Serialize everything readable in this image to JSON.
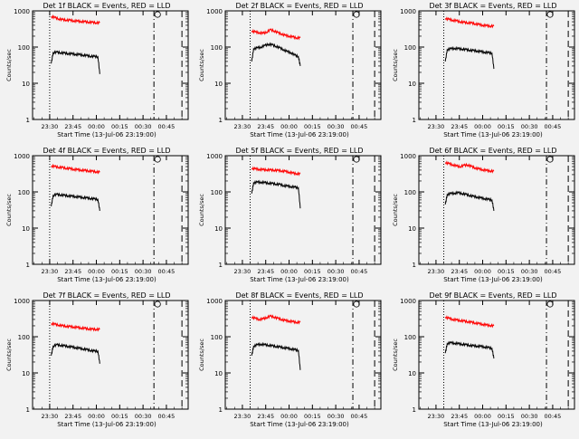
{
  "chart_data": [
    {
      "type": "line",
      "title": "Det 1f BLACK = Events, RED = LLD",
      "xlabel": "Start Time (13-Jul-06 23:19:00)",
      "ylabel": "Counts/sec",
      "yscale": "log",
      "ylim": [
        1,
        1000
      ],
      "x_tick_labels": [
        "23:30",
        "23:45",
        "00:00",
        "00:15",
        "00:30",
        "00:45"
      ],
      "series": [
        {
          "color": "#ff0000",
          "x": [
            0,
            4,
            8,
            12,
            16,
            20,
            24,
            28,
            32,
            36,
            40,
            44,
            48,
            52
          ],
          "y": [
            700,
            650,
            600,
            570,
            560,
            550,
            530,
            520,
            510,
            500,
            490,
            480,
            470,
            470
          ]
        },
        {
          "color": "#000000",
          "x": [
            0,
            2,
            6,
            10,
            14,
            18,
            22,
            26,
            30,
            34,
            38,
            42,
            46,
            50,
            52
          ],
          "y": [
            35,
            70,
            72,
            70,
            68,
            66,
            65,
            63,
            62,
            60,
            58,
            56,
            55,
            54,
            18
          ]
        }
      ]
    },
    {
      "type": "line",
      "title": "Det 2f BLACK = Events, RED = LLD",
      "xlabel": "Start Time (13-Jul-06 23:19:00)",
      "ylabel": "Counts/sec",
      "yscale": "log",
      "ylim": [
        1,
        1000
      ],
      "x_tick_labels": [
        "23:30",
        "23:45",
        "00:00",
        "00:15",
        "00:30",
        "00:45"
      ],
      "series": [
        {
          "color": "#ff0000",
          "x": [
            0,
            4,
            8,
            12,
            16,
            20,
            24,
            28,
            32,
            36,
            40,
            44,
            48,
            52
          ],
          "y": [
            280,
            260,
            250,
            240,
            260,
            300,
            280,
            250,
            230,
            210,
            200,
            190,
            180,
            180
          ]
        },
        {
          "color": "#000000",
          "x": [
            0,
            2,
            6,
            10,
            14,
            18,
            22,
            26,
            30,
            34,
            38,
            42,
            46,
            50,
            52
          ],
          "y": [
            40,
            90,
            95,
            100,
            110,
            120,
            115,
            105,
            95,
            85,
            75,
            70,
            60,
            55,
            30
          ]
        }
      ]
    },
    {
      "type": "line",
      "title": "Det 3f BLACK = Events, RED = LLD",
      "xlabel": "Start Time (13-Jul-06 23:19:00)",
      "ylabel": "Counts/sec",
      "yscale": "log",
      "ylim": [
        1,
        1000
      ],
      "x_tick_labels": [
        "23:30",
        "23:45",
        "00:00",
        "00:15",
        "00:30",
        "00:45"
      ],
      "series": [
        {
          "color": "#ff0000",
          "x": [
            0,
            4,
            8,
            12,
            16,
            20,
            24,
            28,
            32,
            36,
            40,
            44,
            48,
            52
          ],
          "y": [
            620,
            580,
            550,
            530,
            500,
            480,
            470,
            460,
            440,
            420,
            400,
            390,
            380,
            380
          ]
        },
        {
          "color": "#000000",
          "x": [
            0,
            2,
            6,
            10,
            14,
            18,
            22,
            26,
            30,
            34,
            38,
            42,
            46,
            50,
            52
          ],
          "y": [
            40,
            85,
            90,
            92,
            90,
            88,
            85,
            82,
            80,
            78,
            75,
            72,
            70,
            68,
            25
          ]
        }
      ]
    },
    {
      "type": "line",
      "title": "Det 4f BLACK = Events, RED = LLD",
      "xlabel": "Start Time (13-Jul-06 23:19:00)",
      "ylabel": "Counts/sec",
      "yscale": "log",
      "ylim": [
        1,
        1000
      ],
      "x_tick_labels": [
        "23:30",
        "23:45",
        "00:00",
        "00:15",
        "00:30",
        "00:45"
      ],
      "series": [
        {
          "color": "#ff0000",
          "x": [
            0,
            4,
            8,
            12,
            16,
            20,
            24,
            28,
            32,
            36,
            40,
            44,
            48,
            52
          ],
          "y": [
            520,
            500,
            480,
            470,
            450,
            440,
            420,
            410,
            400,
            390,
            380,
            370,
            360,
            350
          ]
        },
        {
          "color": "#000000",
          "x": [
            0,
            2,
            6,
            10,
            14,
            18,
            22,
            26,
            30,
            34,
            38,
            42,
            46,
            50,
            52
          ],
          "y": [
            40,
            80,
            85,
            83,
            80,
            78,
            76,
            74,
            72,
            70,
            68,
            66,
            64,
            62,
            30
          ]
        }
      ]
    },
    {
      "type": "line",
      "title": "Det 5f BLACK = Events, RED = LLD",
      "xlabel": "Start Time (13-Jul-06 23:19:00)",
      "ylabel": "Counts/sec",
      "yscale": "log",
      "ylim": [
        1,
        1000
      ],
      "x_tick_labels": [
        "23:30",
        "23:45",
        "00:00",
        "00:15",
        "00:30",
        "00:45"
      ],
      "series": [
        {
          "color": "#ff0000",
          "x": [
            0,
            4,
            8,
            12,
            16,
            20,
            24,
            28,
            32,
            36,
            40,
            44,
            48,
            52
          ],
          "y": [
            450,
            430,
            420,
            410,
            410,
            400,
            400,
            390,
            380,
            370,
            350,
            330,
            320,
            310
          ]
        },
        {
          "color": "#000000",
          "x": [
            0,
            2,
            6,
            10,
            14,
            18,
            22,
            26,
            30,
            34,
            38,
            42,
            46,
            50,
            52
          ],
          "y": [
            90,
            180,
            185,
            185,
            180,
            175,
            170,
            165,
            160,
            150,
            145,
            140,
            135,
            130,
            35
          ]
        }
      ]
    },
    {
      "type": "line",
      "title": "Det 6f BLACK = Events, RED = LLD",
      "xlabel": "Start Time (13-Jul-06 23:19:00)",
      "ylabel": "Counts/sec",
      "yscale": "log",
      "ylim": [
        1,
        1000
      ],
      "x_tick_labels": [
        "23:30",
        "23:45",
        "00:00",
        "00:15",
        "00:30",
        "00:45"
      ],
      "series": [
        {
          "color": "#ff0000",
          "x": [
            0,
            4,
            8,
            12,
            16,
            20,
            24,
            28,
            32,
            36,
            40,
            44,
            48,
            52
          ],
          "y": [
            650,
            600,
            560,
            520,
            500,
            540,
            560,
            500,
            460,
            430,
            410,
            390,
            380,
            370
          ]
        },
        {
          "color": "#000000",
          "x": [
            0,
            2,
            6,
            10,
            14,
            18,
            22,
            26,
            30,
            34,
            38,
            42,
            46,
            50,
            52
          ],
          "y": [
            45,
            85,
            90,
            92,
            95,
            90,
            85,
            80,
            75,
            72,
            68,
            65,
            62,
            60,
            30
          ]
        }
      ]
    },
    {
      "type": "line",
      "title": "Det 7f BLACK = Events, RED = LLD",
      "xlabel": "Start Time (13-Jul-06 23:19:00)",
      "ylabel": "Counts/sec",
      "yscale": "log",
      "ylim": [
        1,
        1000
      ],
      "x_tick_labels": [
        "23:30",
        "23:45",
        "00:00",
        "00:15",
        "00:30",
        "00:45"
      ],
      "series": [
        {
          "color": "#ff0000",
          "x": [
            0,
            4,
            8,
            12,
            16,
            20,
            24,
            28,
            32,
            36,
            40,
            44,
            48,
            52
          ],
          "y": [
            230,
            220,
            210,
            200,
            195,
            190,
            185,
            180,
            175,
            170,
            165,
            160,
            160,
            160
          ]
        },
        {
          "color": "#000000",
          "x": [
            0,
            2,
            6,
            10,
            14,
            18,
            22,
            26,
            30,
            34,
            38,
            42,
            46,
            50,
            52
          ],
          "y": [
            30,
            55,
            60,
            58,
            56,
            54,
            52,
            50,
            48,
            46,
            44,
            42,
            40,
            40,
            18
          ]
        }
      ]
    },
    {
      "type": "line",
      "title": "Det 8f BLACK = Events, RED = LLD",
      "xlabel": "Start Time (13-Jul-06 23:19:00)",
      "ylabel": "Counts/sec",
      "yscale": "log",
      "ylim": [
        1,
        1000
      ],
      "x_tick_labels": [
        "23:30",
        "23:45",
        "00:00",
        "00:15",
        "00:30",
        "00:45"
      ],
      "series": [
        {
          "color": "#ff0000",
          "x": [
            0,
            4,
            8,
            12,
            16,
            20,
            24,
            28,
            32,
            36,
            40,
            44,
            48,
            52
          ],
          "y": [
            350,
            320,
            300,
            310,
            340,
            370,
            350,
            320,
            300,
            280,
            270,
            260,
            250,
            250
          ]
        },
        {
          "color": "#000000",
          "x": [
            0,
            2,
            6,
            10,
            14,
            18,
            22,
            26,
            30,
            34,
            38,
            42,
            46,
            50,
            52
          ],
          "y": [
            30,
            55,
            60,
            62,
            60,
            58,
            56,
            54,
            52,
            50,
            48,
            46,
            44,
            42,
            12
          ]
        }
      ]
    },
    {
      "type": "line",
      "title": "Det 9f BLACK = Events, RED = LLD",
      "xlabel": "Start Time (13-Jul-06 23:19:00)",
      "ylabel": "Counts/sec",
      "yscale": "log",
      "ylim": [
        1,
        1000
      ],
      "x_tick_labels": [
        "23:30",
        "23:45",
        "00:00",
        "00:15",
        "00:30",
        "00:45"
      ],
      "series": [
        {
          "color": "#ff0000",
          "x": [
            0,
            4,
            8,
            12,
            16,
            20,
            24,
            28,
            32,
            36,
            40,
            44,
            48,
            52
          ],
          "y": [
            350,
            320,
            300,
            290,
            280,
            270,
            260,
            250,
            240,
            230,
            220,
            210,
            205,
            200
          ]
        },
        {
          "color": "#000000",
          "x": [
            0,
            2,
            6,
            10,
            14,
            18,
            22,
            26,
            30,
            34,
            38,
            42,
            46,
            50,
            52
          ],
          "y": [
            35,
            65,
            68,
            66,
            64,
            62,
            60,
            58,
            56,
            55,
            54,
            52,
            50,
            48,
            25
          ]
        }
      ]
    }
  ],
  "y_tick_labels": [
    "1",
    "10",
    "100",
    "1000"
  ]
}
